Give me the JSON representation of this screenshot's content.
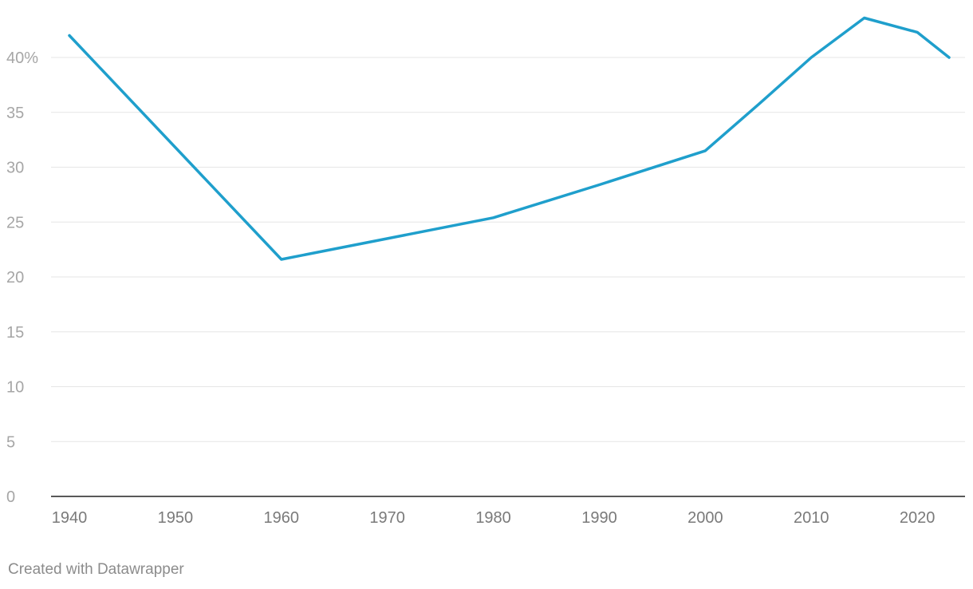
{
  "chart_data": {
    "type": "line",
    "title": "",
    "xlabel": "",
    "ylabel": "",
    "y_unit_suffix": "%",
    "xlim": [
      1940,
      2023
    ],
    "ylim": [
      0,
      43.5
    ],
    "y_ticks": [
      0,
      5,
      10,
      15,
      20,
      25,
      30,
      35,
      40
    ],
    "x_ticks": [
      1940,
      1950,
      1960,
      1970,
      1980,
      1990,
      2000,
      2010,
      2020
    ],
    "grid": true,
    "series": [
      {
        "color": "#1f9fcc",
        "points": [
          {
            "x": 1940,
            "y": 42.0
          },
          {
            "x": 1960,
            "y": 21.6
          },
          {
            "x": 1980,
            "y": 25.4
          },
          {
            "x": 1990,
            "y": 28.4
          },
          {
            "x": 2000,
            "y": 31.5
          },
          {
            "x": 2005,
            "y": 35.7
          },
          {
            "x": 2010,
            "y": 40.0
          },
          {
            "x": 2015,
            "y": 43.6
          },
          {
            "x": 2020,
            "y": 42.3
          },
          {
            "x": 2023,
            "y": 40.0
          }
        ]
      }
    ]
  },
  "footer": {
    "credit": "Created with Datawrapper"
  }
}
